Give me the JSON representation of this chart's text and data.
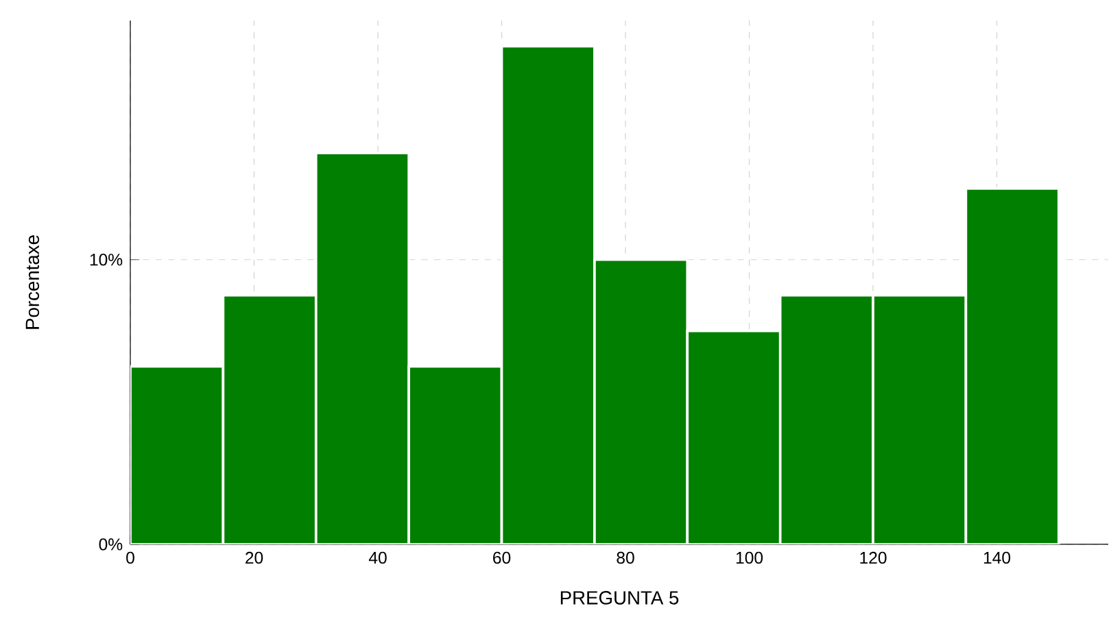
{
  "chart_data": {
    "type": "histogram",
    "xlabel": "PREGUNTA 5",
    "ylabel": "Porcentaxe",
    "bins": [
      0,
      15,
      30,
      45,
      60,
      75,
      90,
      105,
      120,
      135,
      150
    ],
    "values": [
      6.25,
      8.75,
      13.75,
      6.25,
      17.5,
      10,
      7.5,
      8.75,
      8.75,
      12.5
    ],
    "color": "#007f00",
    "xlim": [
      0,
      158
    ],
    "ylim": [
      0,
      18.4
    ],
    "xticks": [
      0,
      20,
      40,
      60,
      80,
      100,
      120,
      140
    ],
    "yticks": [
      {
        "value": 0,
        "label": "0%"
      },
      {
        "value": 10,
        "label": "10%"
      }
    ],
    "grid": true
  }
}
